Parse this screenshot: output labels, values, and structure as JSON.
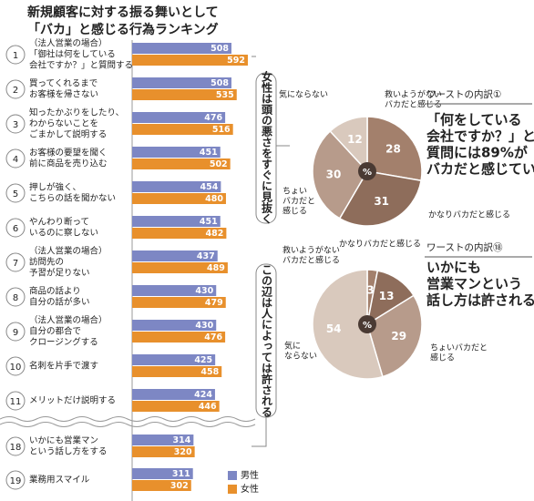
{
  "chart_data": [
    {
      "type": "bar",
      "orientation": "horizontal",
      "title": [
        "新規顧客に対する振る舞いとして",
        "「バカ」と感じる行為ランキング"
      ],
      "ranks": [
        1,
        2,
        3,
        4,
        5,
        6,
        7,
        8,
        9,
        10,
        11,
        18,
        19
      ],
      "categories": [
        [
          "（法人営業の場合）",
          "「御社は何をしている",
          "会社ですか？」と質問する"
        ],
        [
          "買ってくれるまで",
          "お客様を帰さない"
        ],
        [
          "知ったかぶりをしたり、",
          "わからないことを",
          "ごまかして説明する"
        ],
        [
          "お客様の要望を聞く",
          "前に商品を売り込む"
        ],
        [
          "押しが強く、",
          "こちらの話を聞かない"
        ],
        [
          "やんわり断って",
          "いるのに察しない"
        ],
        [
          "（法人営業の場合）",
          "訪問先の",
          "予習が足りない"
        ],
        [
          "商品の話より",
          "自分の話が多い"
        ],
        [
          "（法人営業の場合）",
          "自分の都合で",
          "クロージングする"
        ],
        [
          "名刺を片手で渡す"
        ],
        [
          "メリットだけ説明する"
        ],
        [
          "いかにも営業マン",
          "という話し方をする"
        ],
        [
          "業務用スマイル"
        ]
      ],
      "series": [
        {
          "name": "男性",
          "color": "#7d87c4",
          "values": [
            508,
            508,
            476,
            451,
            454,
            451,
            437,
            430,
            430,
            425,
            424,
            314,
            311
          ]
        },
        {
          "name": "女性",
          "color": "#e8902c",
          "values": [
            592,
            535,
            516,
            502,
            480,
            482,
            489,
            479,
            476,
            458,
            446,
            320,
            302
          ]
        }
      ],
      "annotations": [
        "女性は頭の悪さをすぐに見抜く",
        "この辺は人によっては許される"
      ]
    },
    {
      "type": "pie",
      "heading": "ワーストの内訳①",
      "note": [
        "「何をしている",
        "会社ですか？」という",
        "質問には89%が",
        "バカだと感じている"
      ],
      "labels": [
        [
          "救いようがない",
          "バカだと感じる"
        ],
        [
          "かなりバカだと感じる"
        ],
        [
          "ちょい",
          "バカだと",
          "感じる"
        ],
        [
          "気にならない"
        ]
      ],
      "values": [
        28,
        31,
        30,
        12
      ],
      "colors": [
        "#a3806c",
        "#8e6d5b",
        "#b79b8b",
        "#d9c9bd"
      ],
      "center_label": "%"
    },
    {
      "type": "pie",
      "heading": "ワーストの内訳⑱",
      "note": [
        "いかにも",
        "営業マンという",
        "話し方は許される"
      ],
      "labels": [
        [
          "救いようがない",
          "バカだと感じる"
        ],
        [
          "かなりバカだと感じる"
        ],
        [
          "ちょいバカだと",
          "感じる"
        ],
        [
          "気に",
          "ならない"
        ]
      ],
      "values": [
        3,
        13,
        29,
        54
      ],
      "colors": [
        "#a3806c",
        "#8e6d5b",
        "#b79b8b",
        "#d9c9bd"
      ],
      "center_label": "%"
    }
  ]
}
